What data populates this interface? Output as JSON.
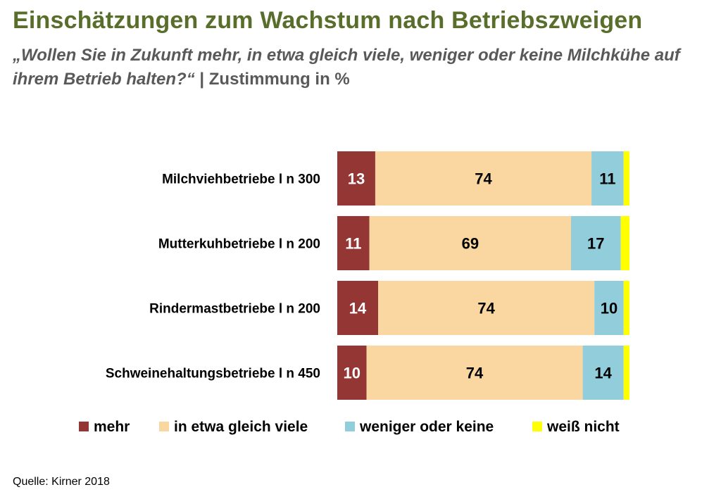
{
  "title": "Einschätzungen zum Wachstum nach Betriebszweigen",
  "subtitle_question": "„Wollen Sie in Zukunft mehr, in etwa gleich viele, weniger oder keine Milchkühe auf ihrem Betrieb halten?“",
  "subtitle_suffix": " | Zustimmung in %",
  "source": "Quelle: Kirner 2018",
  "colors": {
    "mehr": "#943634",
    "gleich": "#fad7a0",
    "weniger": "#92cddc",
    "weiss_nicht": "#ffff00"
  },
  "chart_data": {
    "type": "bar",
    "orientation": "horizontal",
    "stacked": true,
    "title": "Einschätzungen zum Wachstum nach Betriebszweigen",
    "xlabel": "",
    "ylabel": "",
    "xlim": [
      0,
      100
    ],
    "categories": [
      "Milchviehbetriebe l n 300",
      "Mutterkuhbetriebe l n 200",
      "Rindermastbetriebe l n 200",
      "Schweinehaltungsbetriebe l n 450"
    ],
    "series": [
      {
        "name": "mehr",
        "values": [
          13,
          11,
          14,
          10
        ],
        "labels": [
          "13",
          "11",
          "14",
          "10"
        ]
      },
      {
        "name": "in etwa gleich viele",
        "values": [
          74,
          69,
          74,
          74
        ],
        "labels": [
          "74",
          "69",
          "74",
          "74"
        ]
      },
      {
        "name": "weniger oder keine",
        "values": [
          11,
          17,
          10,
          14
        ],
        "labels": [
          "11",
          "17",
          "10",
          "14"
        ]
      },
      {
        "name": "weiß nicht",
        "values": [
          2,
          3,
          2,
          2
        ],
        "labels": [
          "",
          "",
          "",
          ""
        ]
      }
    ],
    "legend_position": "bottom"
  }
}
